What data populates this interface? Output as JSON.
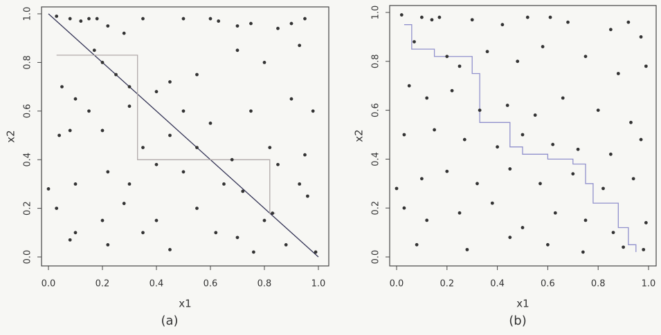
{
  "chart_data": [
    {
      "type": "scatter",
      "xlabel": "x1",
      "ylabel": "x2",
      "caption": "(a)",
      "xlim": [
        0,
        1
      ],
      "ylim": [
        0,
        1
      ],
      "xticks": [
        {
          "value": 0,
          "label": "0.0"
        },
        0.2,
        0.4,
        0.6,
        0.8,
        {
          "value": 1,
          "label": "1.0"
        }
      ],
      "yticks": [
        {
          "value": 0,
          "label": "0.0"
        },
        0.2,
        0.4,
        0.6,
        0.8,
        {
          "value": 1,
          "label": "1.0"
        }
      ],
      "color": "#333333",
      "x": [
        0.03,
        0.08,
        0.12,
        0.15,
        0.18,
        0.22,
        0.28,
        0.35,
        0.5,
        0.6,
        0.63,
        0.7,
        0.75,
        0.85,
        0.9,
        0.95,
        0.17,
        0.2,
        0.25,
        0.3,
        0.4,
        0.45,
        0.55,
        0.7,
        0.8,
        0.93,
        0.05,
        0.1,
        0.15,
        0.3,
        0.5,
        0.6,
        0.75,
        0.9,
        0.98,
        0.04,
        0.08,
        0.2,
        0.35,
        0.45,
        0.55,
        0.68,
        0.82,
        0.95,
        0.0,
        0.1,
        0.22,
        0.3,
        0.4,
        0.5,
        0.65,
        0.72,
        0.85,
        0.93,
        0.03,
        0.1,
        0.2,
        0.28,
        0.4,
        0.45,
        0.55,
        0.62,
        0.7,
        0.8,
        0.88,
        0.96,
        0.08,
        0.22,
        0.35,
        0.76,
        0.99,
        0.83
      ],
      "y": [
        0.99,
        0.98,
        0.97,
        0.98,
        0.98,
        0.95,
        0.92,
        0.98,
        0.98,
        0.98,
        0.97,
        0.95,
        0.96,
        0.94,
        0.96,
        0.98,
        0.85,
        0.8,
        0.75,
        0.7,
        0.68,
        0.72,
        0.75,
        0.85,
        0.8,
        0.87,
        0.7,
        0.65,
        0.6,
        0.62,
        0.6,
        0.55,
        0.6,
        0.65,
        0.6,
        0.5,
        0.52,
        0.52,
        0.45,
        0.5,
        0.45,
        0.4,
        0.45,
        0.42,
        0.28,
        0.3,
        0.35,
        0.3,
        0.38,
        0.35,
        0.3,
        0.27,
        0.38,
        0.3,
        0.2,
        0.1,
        0.15,
        0.22,
        0.15,
        0.03,
        0.2,
        0.1,
        0.08,
        0.15,
        0.05,
        0.25,
        0.07,
        0.05,
        0.1,
        0.02,
        0.02,
        0.18
      ],
      "lines": [
        {
          "color": "#333355",
          "x": [
            0,
            1
          ],
          "y": [
            1,
            0
          ]
        },
        {
          "color": "#b0a8a8",
          "x": [
            0.03,
            0.33,
            0.33,
            0.82,
            0.82,
            0.84
          ],
          "y": [
            0.83,
            0.83,
            0.4,
            0.4,
            0.18,
            0.18
          ]
        }
      ]
    },
    {
      "type": "scatter",
      "xlabel": "x1",
      "ylabel": "x2",
      "caption": "(b)",
      "xlim": [
        0,
        1
      ],
      "ylim": [
        0,
        1
      ],
      "xticks": [
        {
          "value": 0,
          "label": "0.0"
        },
        0.2,
        0.4,
        0.6,
        0.8,
        {
          "value": 1,
          "label": "1.0"
        }
      ],
      "yticks": [
        {
          "value": 0,
          "label": "0.0"
        },
        0.2,
        0.4,
        0.6,
        0.8,
        {
          "value": 1,
          "label": "1.0"
        }
      ],
      "color": "#333333",
      "x": [
        0.02,
        0.1,
        0.14,
        0.17,
        0.3,
        0.42,
        0.52,
        0.61,
        0.68,
        0.85,
        0.92,
        0.97,
        0.07,
        0.2,
        0.25,
        0.36,
        0.48,
        0.58,
        0.75,
        0.88,
        0.99,
        0.05,
        0.12,
        0.22,
        0.33,
        0.44,
        0.55,
        0.66,
        0.8,
        0.93,
        0.03,
        0.15,
        0.27,
        0.4,
        0.5,
        0.62,
        0.72,
        0.85,
        0.97,
        0.0,
        0.1,
        0.2,
        0.32,
        0.45,
        0.57,
        0.7,
        0.82,
        0.94,
        0.03,
        0.12,
        0.25,
        0.38,
        0.5,
        0.63,
        0.75,
        0.86,
        0.99,
        0.08,
        0.28,
        0.45,
        0.6,
        0.74,
        0.9,
        0.98
      ],
      "y": [
        0.99,
        0.98,
        0.97,
        0.98,
        0.97,
        0.95,
        0.98,
        0.98,
        0.96,
        0.93,
        0.96,
        0.9,
        0.88,
        0.82,
        0.78,
        0.84,
        0.8,
        0.86,
        0.82,
        0.75,
        0.78,
        0.7,
        0.65,
        0.68,
        0.6,
        0.62,
        0.58,
        0.65,
        0.6,
        0.55,
        0.5,
        0.52,
        0.48,
        0.45,
        0.5,
        0.46,
        0.44,
        0.42,
        0.48,
        0.28,
        0.32,
        0.35,
        0.3,
        0.36,
        0.3,
        0.34,
        0.28,
        0.32,
        0.2,
        0.15,
        0.18,
        0.22,
        0.12,
        0.18,
        0.15,
        0.1,
        0.14,
        0.05,
        0.03,
        0.08,
        0.05,
        0.02,
        0.04,
        0.03
      ],
      "lines": [
        {
          "color": "#9090cc",
          "x": [
            0.03,
            0.06,
            0.06,
            0.15,
            0.15,
            0.3,
            0.3,
            0.33,
            0.33,
            0.45,
            0.45,
            0.5,
            0.5,
            0.6,
            0.6,
            0.7,
            0.7,
            0.75,
            0.75,
            0.78,
            0.78,
            0.88,
            0.88,
            0.92,
            0.92,
            0.95,
            0.95
          ],
          "y": [
            0.95,
            0.95,
            0.85,
            0.85,
            0.82,
            0.82,
            0.75,
            0.75,
            0.55,
            0.55,
            0.45,
            0.45,
            0.42,
            0.42,
            0.4,
            0.4,
            0.38,
            0.38,
            0.3,
            0.3,
            0.22,
            0.22,
            0.12,
            0.12,
            0.05,
            0.05,
            0.02
          ]
        }
      ]
    }
  ]
}
